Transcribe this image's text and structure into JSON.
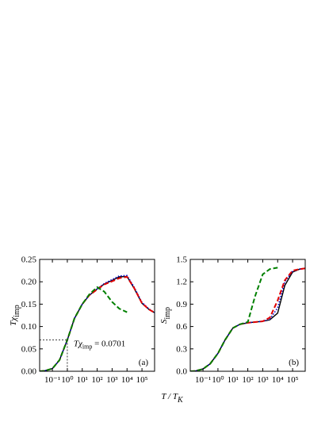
{
  "x_axis_label": {
    "main": "T / T",
    "sub": "K"
  },
  "chart_data": [
    {
      "type": "line",
      "xscale": "log",
      "panel_label": "(a)",
      "ylabel": {
        "main": "Tχ",
        "sub": "imp"
      },
      "annotation": {
        "main": "Tχ",
        "sub": "imp",
        "rest": " = 0.0701",
        "x": 1,
        "y": 0.0701
      },
      "xlim": [
        0.014,
        700000
      ],
      "ylim": [
        0,
        0.25
      ],
      "xticks": [
        {
          "value": 0.1,
          "label": "10⁻¹"
        },
        {
          "value": 1,
          "label": "10⁰"
        },
        {
          "value": 10,
          "label": "10¹"
        },
        {
          "value": 100,
          "label": "10²"
        },
        {
          "value": 1000,
          "label": "10³"
        },
        {
          "value": 10000,
          "label": "10⁴"
        },
        {
          "value": 100000,
          "label": "10⁵"
        }
      ],
      "yticks": [
        {
          "value": 0,
          "label": "0.00"
        },
        {
          "value": 0.05,
          "label": "0.05"
        },
        {
          "value": 0.1,
          "label": "0.10"
        },
        {
          "value": 0.15,
          "label": "0.15"
        },
        {
          "value": 0.2,
          "label": "0.20"
        },
        {
          "value": 0.25,
          "label": "0.25"
        }
      ],
      "x": [
        0.014,
        0.03,
        0.1,
        0.3,
        1,
        3,
        10,
        30,
        100,
        300,
        1000,
        3000,
        10000,
        30000,
        100000,
        300000,
        700000
      ],
      "series": [
        {
          "color": "#000000",
          "style": "solid",
          "values": [
            0,
            0.001,
            0.006,
            0.025,
            0.0701,
            0.118,
            0.15,
            0.17,
            0.184,
            0.195,
            0.203,
            0.211,
            0.212,
            0.185,
            0.152,
            0.138,
            0.131
          ]
        },
        {
          "color": "#0000cc",
          "style": "dotted",
          "values": [
            0,
            0.001,
            0.006,
            0.025,
            0.0701,
            0.118,
            0.15,
            0.17,
            0.184,
            0.196,
            0.205,
            0.213,
            0.214,
            0.188,
            0.154,
            0.139,
            0.131
          ]
        },
        {
          "color": "#e00000",
          "style": "dashed",
          "values": [
            0,
            0.001,
            0.006,
            0.025,
            0.0701,
            0.118,
            0.15,
            0.17,
            0.183,
            0.194,
            0.201,
            0.208,
            0.211,
            0.186,
            0.152,
            0.138,
            0.131
          ]
        },
        {
          "color": "#008000",
          "style": "dashed",
          "values": [
            0,
            0.001,
            0.006,
            0.025,
            0.0701,
            0.118,
            0.15,
            0.172,
            0.188,
            0.178,
            0.155,
            0.14,
            0.132,
            null,
            null,
            null,
            null
          ]
        }
      ]
    },
    {
      "type": "line",
      "xscale": "log",
      "panel_label": "(b)",
      "ylabel": {
        "main": "S",
        "sub": "imp"
      },
      "xlim": [
        0.014,
        700000
      ],
      "ylim": [
        0,
        1.5
      ],
      "xticks": [
        {
          "value": 0.1,
          "label": "10⁻¹"
        },
        {
          "value": 1,
          "label": "10⁰"
        },
        {
          "value": 10,
          "label": "10¹"
        },
        {
          "value": 100,
          "label": "10²"
        },
        {
          "value": 1000,
          "label": "10³"
        },
        {
          "value": 10000,
          "label": "10⁴"
        },
        {
          "value": 100000,
          "label": "10⁵"
        }
      ],
      "yticks": [
        {
          "value": 0,
          "label": "0.0"
        },
        {
          "value": 0.3,
          "label": "0.3"
        },
        {
          "value": 0.6,
          "label": "0.6"
        },
        {
          "value": 0.9,
          "label": "0.9"
        },
        {
          "value": 1.2,
          "label": "1.2"
        },
        {
          "value": 1.5,
          "label": "1.5"
        }
      ],
      "x": [
        0.014,
        0.03,
        0.1,
        0.3,
        1,
        3,
        10,
        30,
        100,
        300,
        1000,
        3000,
        10000,
        30000,
        100000,
        300000,
        700000
      ],
      "series": [
        {
          "color": "#000000",
          "style": "solid",
          "values": [
            0,
            0.003,
            0.03,
            0.1,
            0.24,
            0.42,
            0.58,
            0.63,
            0.65,
            0.66,
            0.67,
            0.69,
            0.78,
            1.15,
            1.33,
            1.37,
            1.38
          ]
        },
        {
          "color": "#0000cc",
          "style": "dotted",
          "values": [
            0,
            0.003,
            0.03,
            0.1,
            0.24,
            0.42,
            0.58,
            0.63,
            0.65,
            0.66,
            0.67,
            0.7,
            0.85,
            1.2,
            1.34,
            1.37,
            1.38
          ]
        },
        {
          "color": "#e00000",
          "style": "dashed",
          "values": [
            0,
            0.003,
            0.03,
            0.1,
            0.24,
            0.42,
            0.58,
            0.63,
            0.65,
            0.66,
            0.67,
            0.72,
            0.95,
            1.22,
            1.35,
            1.37,
            1.38
          ]
        },
        {
          "color": "#008000",
          "style": "dashed",
          "values": [
            0,
            0.003,
            0.03,
            0.1,
            0.24,
            0.42,
            0.58,
            0.63,
            0.66,
            1.0,
            1.3,
            1.37,
            1.39,
            null,
            null,
            null,
            null
          ]
        }
      ]
    }
  ]
}
